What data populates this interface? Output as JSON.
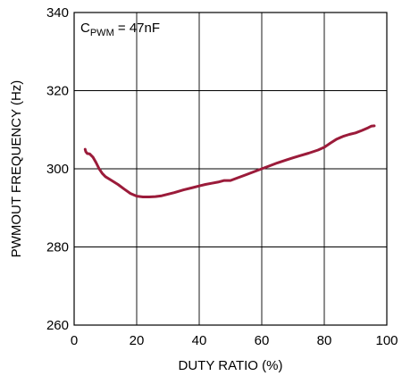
{
  "chart_data": {
    "type": "line",
    "xlabel": "DUTY RATIO (%)",
    "ylabel": "PWMOUT FREQUENCY (Hz)",
    "xlim": [
      0,
      100
    ],
    "ylim": [
      260,
      340
    ],
    "xticks": [
      0,
      20,
      40,
      60,
      80,
      100
    ],
    "yticks": [
      260,
      280,
      300,
      320,
      340
    ],
    "grid": true,
    "annotation": {
      "main": "C",
      "sub": "PWM",
      "rest": " = 47nF"
    },
    "line_color": "#9b1b3a",
    "series": [
      {
        "x": [
          3.5,
          3.7,
          4.2,
          5,
          6,
          7,
          8,
          9,
          10,
          12,
          14,
          16,
          18,
          20,
          22,
          24,
          26,
          28,
          30,
          32,
          35,
          38,
          40,
          42,
          44,
          46,
          48,
          50,
          52,
          55,
          58,
          60,
          62,
          65,
          68,
          70,
          72,
          75,
          78,
          80,
          82,
          84,
          86,
          88,
          90,
          92,
          94,
          95,
          96
        ],
        "y": [
          305.0,
          304.4,
          303.9,
          303.8,
          303.0,
          301.6,
          300.0,
          298.8,
          298.0,
          297.0,
          296.0,
          294.8,
          293.7,
          293.0,
          292.8,
          292.8,
          292.9,
          293.1,
          293.5,
          293.9,
          294.6,
          295.2,
          295.6,
          296.0,
          296.3,
          296.6,
          297.0,
          297.0,
          297.6,
          298.5,
          299.4,
          300.0,
          300.6,
          301.5,
          302.3,
          302.8,
          303.3,
          304.0,
          304.8,
          305.5,
          306.6,
          307.6,
          308.3,
          308.8,
          309.2,
          309.8,
          310.5,
          310.9,
          311.0
        ]
      }
    ]
  }
}
